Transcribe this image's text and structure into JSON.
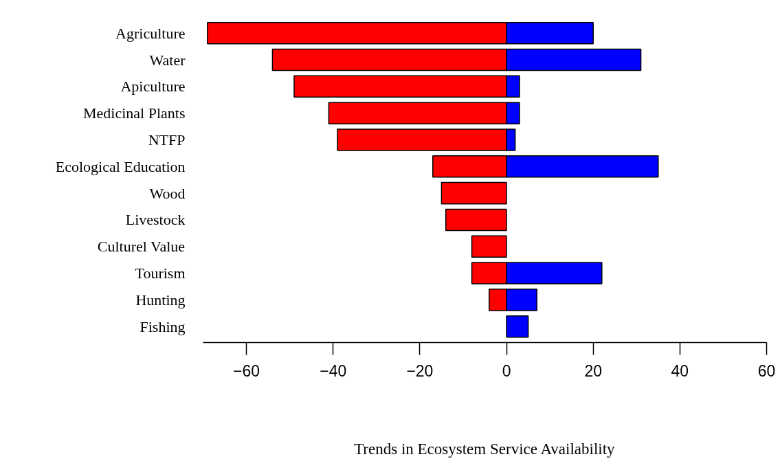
{
  "chart_data": {
    "type": "bar",
    "orientation": "horizontal",
    "xlabel": "Trends in Ecosystem Service Availability",
    "categories": [
      "Agriculture",
      "Water",
      "Apiculture",
      "Medicinal Plants",
      "NTFP",
      "Ecological Education",
      "Wood",
      "Livestock",
      "Culturel Value",
      "Tourism",
      "Hunting",
      "Fishing"
    ],
    "series": [
      {
        "color": "#ff0000",
        "values": [
          -69,
          -54,
          -49,
          -41,
          -39,
          -17,
          -15,
          -14,
          -8,
          -8,
          -4,
          0
        ]
      },
      {
        "color": "#0000ff",
        "values": [
          20,
          31,
          3,
          3,
          2,
          35,
          0,
          0,
          0,
          22,
          7,
          5
        ]
      }
    ],
    "xlim": [
      -70,
      60
    ],
    "xticks": [
      -60,
      -40,
      -20,
      0,
      20,
      40,
      60
    ],
    "grid": false,
    "stacked": true
  }
}
